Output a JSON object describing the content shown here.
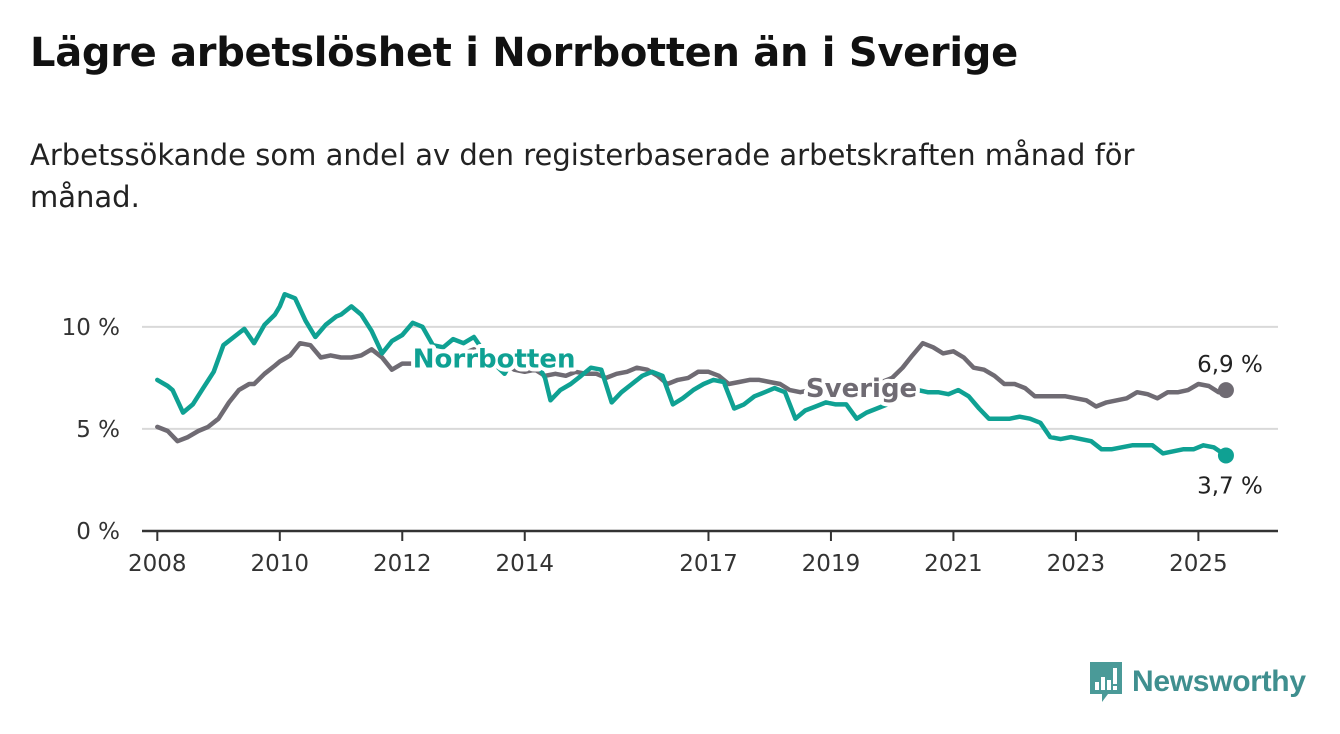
{
  "colors": {
    "norrbotten": "#0fa193",
    "sverige": "#6f6b73",
    "grid": "#d9d9d9",
    "axis": "#333333",
    "brand": "#3f8f8f"
  },
  "brand": {
    "name": "Newsworthy",
    "icon": "newsworthy-logo-icon"
  },
  "chart_data": {
    "type": "line",
    "title": "Lägre arbetslöshet i Norrbotten än i Sverige",
    "subtitle": "Arbetssökande som andel av den registerbaserade arbetskraften månad för månad.",
    "xlabel": "",
    "ylabel": "",
    "ylim": [
      0,
      12
    ],
    "xlim": [
      2007.75,
      2026.3
    ],
    "grid": true,
    "y_ticks": [
      {
        "value": 0,
        "label": "0 %"
      },
      {
        "value": 5,
        "label": "5 %"
      },
      {
        "value": 10,
        "label": "10 %"
      }
    ],
    "x_ticks": [
      {
        "value": 2008,
        "label": "2008"
      },
      {
        "value": 2010,
        "label": "2010"
      },
      {
        "value": 2012,
        "label": "2012"
      },
      {
        "value": 2014,
        "label": "2014"
      },
      {
        "value": 2017,
        "label": "2017"
      },
      {
        "value": 2019,
        "label": "2019"
      },
      {
        "value": 2021,
        "label": "2021"
      },
      {
        "value": 2023,
        "label": "2023"
      },
      {
        "value": 2025,
        "label": "2025"
      }
    ],
    "series": [
      {
        "name": "Sverige",
        "end_label": "6,9 %",
        "points": [
          [
            2008.0,
            5.1
          ],
          [
            2008.17,
            4.9
          ],
          [
            2008.33,
            4.4
          ],
          [
            2008.5,
            4.6
          ],
          [
            2008.67,
            4.9
          ],
          [
            2008.83,
            5.1
          ],
          [
            2009.0,
            5.5
          ],
          [
            2009.17,
            6.3
          ],
          [
            2009.33,
            6.9
          ],
          [
            2009.5,
            7.2
          ],
          [
            2009.58,
            7.2
          ],
          [
            2009.75,
            7.7
          ],
          [
            2009.92,
            8.1
          ],
          [
            2010.0,
            8.3
          ],
          [
            2010.17,
            8.6
          ],
          [
            2010.33,
            9.2
          ],
          [
            2010.5,
            9.1
          ],
          [
            2010.67,
            8.5
          ],
          [
            2010.83,
            8.6
          ],
          [
            2011.0,
            8.5
          ],
          [
            2011.17,
            8.5
          ],
          [
            2011.33,
            8.6
          ],
          [
            2011.5,
            8.9
          ],
          [
            2011.67,
            8.5
          ],
          [
            2011.83,
            7.9
          ],
          [
            2012.0,
            8.2
          ],
          [
            2012.17,
            8.2
          ],
          [
            2012.33,
            8.7
          ],
          [
            2012.5,
            8.7
          ],
          [
            2012.67,
            8.3
          ],
          [
            2012.83,
            8.0
          ],
          [
            2013.0,
            8.7
          ],
          [
            2013.17,
            8.9
          ],
          [
            2013.33,
            8.6
          ],
          [
            2013.5,
            8.4
          ],
          [
            2013.67,
            8.2
          ],
          [
            2013.83,
            7.9
          ],
          [
            2014.0,
            7.8
          ],
          [
            2014.17,
            7.9
          ],
          [
            2014.33,
            7.6
          ],
          [
            2014.5,
            7.7
          ],
          [
            2014.67,
            7.6
          ],
          [
            2014.83,
            7.8
          ],
          [
            2015.0,
            7.7
          ],
          [
            2015.17,
            7.7
          ],
          [
            2015.33,
            7.5
          ],
          [
            2015.5,
            7.7
          ],
          [
            2015.67,
            7.8
          ],
          [
            2015.83,
            8.0
          ],
          [
            2016.0,
            7.9
          ],
          [
            2016.17,
            7.6
          ],
          [
            2016.33,
            7.2
          ],
          [
            2016.5,
            7.4
          ],
          [
            2016.67,
            7.5
          ],
          [
            2016.83,
            7.8
          ],
          [
            2017.0,
            7.8
          ],
          [
            2017.17,
            7.6
          ],
          [
            2017.33,
            7.2
          ],
          [
            2017.5,
            7.3
          ],
          [
            2017.67,
            7.4
          ],
          [
            2017.83,
            7.4
          ],
          [
            2018.0,
            7.3
          ],
          [
            2018.17,
            7.2
          ],
          [
            2018.33,
            6.9
          ],
          [
            2018.5,
            6.8
          ],
          [
            2018.67,
            6.9
          ],
          [
            2018.83,
            7.0
          ],
          [
            2019.0,
            7.0
          ],
          [
            2019.17,
            7.1
          ],
          [
            2019.33,
            7.0
          ],
          [
            2019.5,
            7.2
          ],
          [
            2019.67,
            7.3
          ],
          [
            2019.83,
            7.3
          ],
          [
            2020.0,
            7.5
          ],
          [
            2020.17,
            8.0
          ],
          [
            2020.33,
            8.6
          ],
          [
            2020.5,
            9.2
          ],
          [
            2020.67,
            9.0
          ],
          [
            2020.83,
            8.7
          ],
          [
            2021.0,
            8.8
          ],
          [
            2021.17,
            8.5
          ],
          [
            2021.33,
            8.0
          ],
          [
            2021.5,
            7.9
          ],
          [
            2021.67,
            7.6
          ],
          [
            2021.83,
            7.2
          ],
          [
            2022.0,
            7.2
          ],
          [
            2022.17,
            7.0
          ],
          [
            2022.33,
            6.6
          ],
          [
            2022.5,
            6.6
          ],
          [
            2022.67,
            6.6
          ],
          [
            2022.83,
            6.6
          ],
          [
            2023.0,
            6.5
          ],
          [
            2023.17,
            6.4
          ],
          [
            2023.33,
            6.1
          ],
          [
            2023.5,
            6.3
          ],
          [
            2023.67,
            6.4
          ],
          [
            2023.83,
            6.5
          ],
          [
            2024.0,
            6.8
          ],
          [
            2024.17,
            6.7
          ],
          [
            2024.33,
            6.5
          ],
          [
            2024.5,
            6.8
          ],
          [
            2024.67,
            6.8
          ],
          [
            2024.83,
            6.9
          ],
          [
            2025.0,
            7.2
          ],
          [
            2025.17,
            7.1
          ],
          [
            2025.33,
            6.8
          ],
          [
            2025.45,
            6.9
          ]
        ]
      },
      {
        "name": "Norrbotten",
        "end_label": "3,7 %",
        "points": [
          [
            2008.0,
            7.4
          ],
          [
            2008.17,
            7.1
          ],
          [
            2008.25,
            6.9
          ],
          [
            2008.42,
            5.8
          ],
          [
            2008.58,
            6.2
          ],
          [
            2008.75,
            7.0
          ],
          [
            2008.92,
            7.8
          ],
          [
            2009.08,
            9.1
          ],
          [
            2009.25,
            9.5
          ],
          [
            2009.42,
            9.9
          ],
          [
            2009.58,
            9.2
          ],
          [
            2009.75,
            10.1
          ],
          [
            2009.92,
            10.6
          ],
          [
            2010.0,
            11.0
          ],
          [
            2010.08,
            11.6
          ],
          [
            2010.25,
            11.4
          ],
          [
            2010.42,
            10.3
          ],
          [
            2010.58,
            9.5
          ],
          [
            2010.75,
            10.1
          ],
          [
            2010.92,
            10.5
          ],
          [
            2011.0,
            10.6
          ],
          [
            2011.17,
            11.0
          ],
          [
            2011.33,
            10.6
          ],
          [
            2011.5,
            9.8
          ],
          [
            2011.67,
            8.7
          ],
          [
            2011.83,
            9.3
          ],
          [
            2012.0,
            9.6
          ],
          [
            2012.17,
            10.2
          ],
          [
            2012.33,
            10.0
          ],
          [
            2012.5,
            9.1
          ],
          [
            2012.67,
            9.0
          ],
          [
            2012.83,
            9.4
          ],
          [
            2013.0,
            9.2
          ],
          [
            2013.17,
            9.5
          ],
          [
            2013.33,
            8.8
          ],
          [
            2013.5,
            8.2
          ],
          [
            2013.67,
            7.7
          ],
          [
            2013.83,
            8.5
          ],
          [
            2014.0,
            8.3
          ],
          [
            2014.17,
            8.4
          ],
          [
            2014.33,
            7.5
          ],
          [
            2014.42,
            6.4
          ],
          [
            2014.58,
            6.9
          ],
          [
            2014.75,
            7.2
          ],
          [
            2014.92,
            7.6
          ],
          [
            2015.08,
            8.0
          ],
          [
            2015.25,
            7.9
          ],
          [
            2015.42,
            6.3
          ],
          [
            2015.58,
            6.8
          ],
          [
            2015.75,
            7.2
          ],
          [
            2015.92,
            7.6
          ],
          [
            2016.08,
            7.8
          ],
          [
            2016.25,
            7.6
          ],
          [
            2016.42,
            6.2
          ],
          [
            2016.58,
            6.5
          ],
          [
            2016.75,
            6.9
          ],
          [
            2016.92,
            7.2
          ],
          [
            2017.08,
            7.4
          ],
          [
            2017.25,
            7.3
          ],
          [
            2017.42,
            6.0
          ],
          [
            2017.58,
            6.2
          ],
          [
            2017.75,
            6.6
          ],
          [
            2017.92,
            6.8
          ],
          [
            2018.08,
            7.0
          ],
          [
            2018.25,
            6.8
          ],
          [
            2018.42,
            5.5
          ],
          [
            2018.58,
            5.9
          ],
          [
            2018.75,
            6.1
          ],
          [
            2018.92,
            6.3
          ],
          [
            2019.08,
            6.2
          ],
          [
            2019.25,
            6.2
          ],
          [
            2019.42,
            5.5
          ],
          [
            2019.58,
            5.8
          ],
          [
            2019.75,
            6.0
          ],
          [
            2019.92,
            6.2
          ],
          [
            2020.08,
            6.5
          ],
          [
            2020.25,
            6.8
          ],
          [
            2020.42,
            6.9
          ],
          [
            2020.58,
            6.8
          ],
          [
            2020.75,
            6.8
          ],
          [
            2020.92,
            6.7
          ],
          [
            2021.08,
            6.9
          ],
          [
            2021.25,
            6.6
          ],
          [
            2021.42,
            6.0
          ],
          [
            2021.58,
            5.5
          ],
          [
            2021.75,
            5.5
          ],
          [
            2021.92,
            5.5
          ],
          [
            2022.08,
            5.6
          ],
          [
            2022.25,
            5.5
          ],
          [
            2022.42,
            5.3
          ],
          [
            2022.58,
            4.6
          ],
          [
            2022.75,
            4.5
          ],
          [
            2022.92,
            4.6
          ],
          [
            2023.08,
            4.5
          ],
          [
            2023.25,
            4.4
          ],
          [
            2023.42,
            4.0
          ],
          [
            2023.58,
            4.0
          ],
          [
            2023.75,
            4.1
          ],
          [
            2023.92,
            4.2
          ],
          [
            2024.08,
            4.2
          ],
          [
            2024.25,
            4.2
          ],
          [
            2024.42,
            3.8
          ],
          [
            2024.58,
            3.9
          ],
          [
            2024.75,
            4.0
          ],
          [
            2024.92,
            4.0
          ],
          [
            2025.08,
            4.2
          ],
          [
            2025.25,
            4.1
          ],
          [
            2025.45,
            3.7
          ]
        ]
      }
    ],
    "annotations": [
      {
        "series": "Norrbotten",
        "text": "Norrbotten",
        "at": [
          2013.5,
          8.45
        ],
        "position": "inline"
      },
      {
        "series": "Sverige",
        "text": "Sverige",
        "at": [
          2019.5,
          7.0
        ],
        "position": "inline"
      }
    ]
  }
}
